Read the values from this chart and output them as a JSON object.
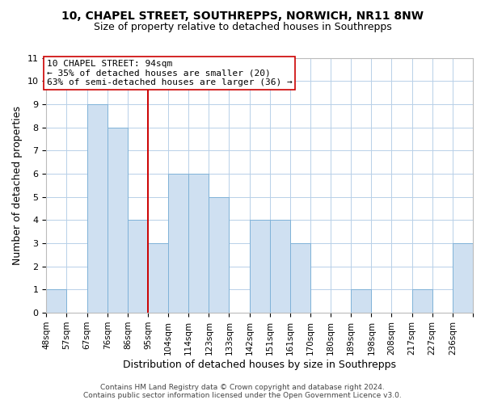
{
  "title_line1": "10, CHAPEL STREET, SOUTHREPPS, NORWICH, NR11 8NW",
  "title_line2": "Size of property relative to detached houses in Southrepps",
  "xlabel": "Distribution of detached houses by size in Southrepps",
  "ylabel": "Number of detached properties",
  "footer_line1": "Contains HM Land Registry data © Crown copyright and database right 2024.",
  "footer_line2": "Contains public sector information licensed under the Open Government Licence v3.0.",
  "bin_labels": [
    "48sqm",
    "57sqm",
    "67sqm",
    "76sqm",
    "86sqm",
    "95sqm",
    "104sqm",
    "114sqm",
    "123sqm",
    "133sqm",
    "142sqm",
    "151sqm",
    "161sqm",
    "170sqm",
    "180sqm",
    "189sqm",
    "198sqm",
    "208sqm",
    "217sqm",
    "227sqm",
    "236sqm"
  ],
  "bar_heights": [
    1,
    0,
    9,
    8,
    4,
    3,
    6,
    6,
    5,
    0,
    4,
    4,
    3,
    0,
    0,
    1,
    0,
    0,
    1,
    0,
    3
  ],
  "bar_color": "#cfe0f1",
  "bar_edge_color": "#7fb2d8",
  "annotation_box_text": "10 CHAPEL STREET: 94sqm\n← 35% of detached houses are smaller (20)\n63% of semi-detached houses are larger (36) →",
  "vline_x_index": 5,
  "ylim_max": 11,
  "yticks": [
    0,
    1,
    2,
    3,
    4,
    5,
    6,
    7,
    8,
    9,
    10,
    11
  ],
  "grid_color": "#b8d0e8",
  "background_color": "#ffffff",
  "vline_color": "#cc0000",
  "box_edge_color": "#cc0000",
  "annotation_fontsize": 8.0,
  "title1_fontsize": 10,
  "title2_fontsize": 9,
  "xlabel_fontsize": 9,
  "ylabel_fontsize": 9,
  "tick_fontsize": 8,
  "xtick_fontsize": 7.5,
  "footer_fontsize": 6.5
}
